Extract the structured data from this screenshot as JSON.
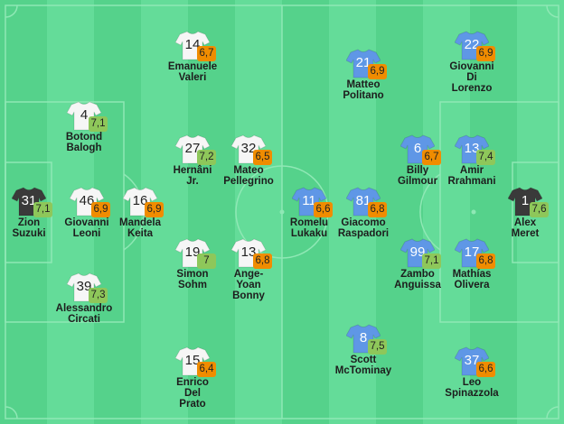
{
  "colors": {
    "stripe_dark": "#55d28b",
    "stripe_light": "#64dc99",
    "lines": "#8fe8b5",
    "home_kit": "#f6f6f6",
    "away_kit": "#5f97e6",
    "keeper_kit": "#3a3a3a",
    "rating_orange": "#f08c00",
    "rating_green": "#8ec75a"
  },
  "home": [
    {
      "number": "31",
      "rating": "7,1",
      "rating_color": "green",
      "name_lines": [
        "Zion",
        "Suzuki"
      ],
      "kit": "keeper"
    },
    {
      "number": "4",
      "rating": "7,1",
      "rating_color": "green",
      "name_lines": [
        "Botond",
        "Balogh"
      ],
      "kit": "home"
    },
    {
      "number": "46",
      "rating": "6,9",
      "rating_color": "orange",
      "name_lines": [
        "Giovanni",
        "Leoni"
      ],
      "kit": "home"
    },
    {
      "number": "39",
      "rating": "7,3",
      "rating_color": "green",
      "name_lines": [
        "Alessandro",
        "Circati"
      ],
      "kit": "home"
    },
    {
      "number": "16",
      "rating": "6,9",
      "rating_color": "orange",
      "name_lines": [
        "Mandela",
        "Keita"
      ],
      "kit": "home"
    },
    {
      "number": "14",
      "rating": "6,7",
      "rating_color": "orange",
      "name_lines": [
        "Emanuele",
        "Valeri"
      ],
      "kit": "home"
    },
    {
      "number": "27",
      "rating": "7,2",
      "rating_color": "green",
      "name_lines": [
        "Hernâni",
        "Jr."
      ],
      "kit": "home"
    },
    {
      "number": "19",
      "rating": "7",
      "rating_color": "green",
      "name_lines": [
        "Simon",
        "Sohm"
      ],
      "kit": "home"
    },
    {
      "number": "15",
      "rating": "6,4",
      "rating_color": "orange",
      "name_lines": [
        "Enrico",
        "Del",
        "Prato"
      ],
      "kit": "home"
    },
    {
      "number": "32",
      "rating": "6,5",
      "rating_color": "orange",
      "name_lines": [
        "Mateo",
        "Pellegrino"
      ],
      "kit": "home"
    },
    {
      "number": "13",
      "rating": "6,8",
      "rating_color": "orange",
      "name_lines": [
        "Ange-",
        "Yoan",
        "Bonny"
      ],
      "kit": "home"
    }
  ],
  "away": [
    {
      "number": "1",
      "rating": "7,6",
      "rating_color": "green",
      "name_lines": [
        "Alex",
        "Meret"
      ],
      "kit": "keeper"
    },
    {
      "number": "22",
      "rating": "6,9",
      "rating_color": "orange",
      "name_lines": [
        "Giovanni",
        "Di",
        "Lorenzo"
      ],
      "kit": "away"
    },
    {
      "number": "13",
      "rating": "7,4",
      "rating_color": "green",
      "name_lines": [
        "Amir",
        "Rrahmani"
      ],
      "kit": "away"
    },
    {
      "number": "17",
      "rating": "6,8",
      "rating_color": "orange",
      "name_lines": [
        "Mathías",
        "Olivera"
      ],
      "kit": "away"
    },
    {
      "number": "37",
      "rating": "6,6",
      "rating_color": "orange",
      "name_lines": [
        "Leo",
        "Spinazzola"
      ],
      "kit": "away"
    },
    {
      "number": "6",
      "rating": "6,7",
      "rating_color": "orange",
      "name_lines": [
        "Billy",
        "Gilmour"
      ],
      "kit": "away"
    },
    {
      "number": "99",
      "rating": "7,1",
      "rating_color": "green",
      "name_lines": [
        "Zambo",
        "Anguissa"
      ],
      "kit": "away"
    },
    {
      "number": "21",
      "rating": "6,9",
      "rating_color": "orange",
      "name_lines": [
        "Matteo",
        "Politano"
      ],
      "kit": "away"
    },
    {
      "number": "81",
      "rating": "6,8",
      "rating_color": "orange",
      "name_lines": [
        "Giacomo",
        "Raspadori"
      ],
      "kit": "away"
    },
    {
      "number": "8",
      "rating": "7,5",
      "rating_color": "green",
      "name_lines": [
        "Scott",
        "McTominay"
      ],
      "kit": "away"
    },
    {
      "number": "11",
      "rating": "6,6",
      "rating_color": "orange",
      "name_lines": [
        "Romelu",
        "Lukaku"
      ],
      "kit": "away"
    }
  ]
}
